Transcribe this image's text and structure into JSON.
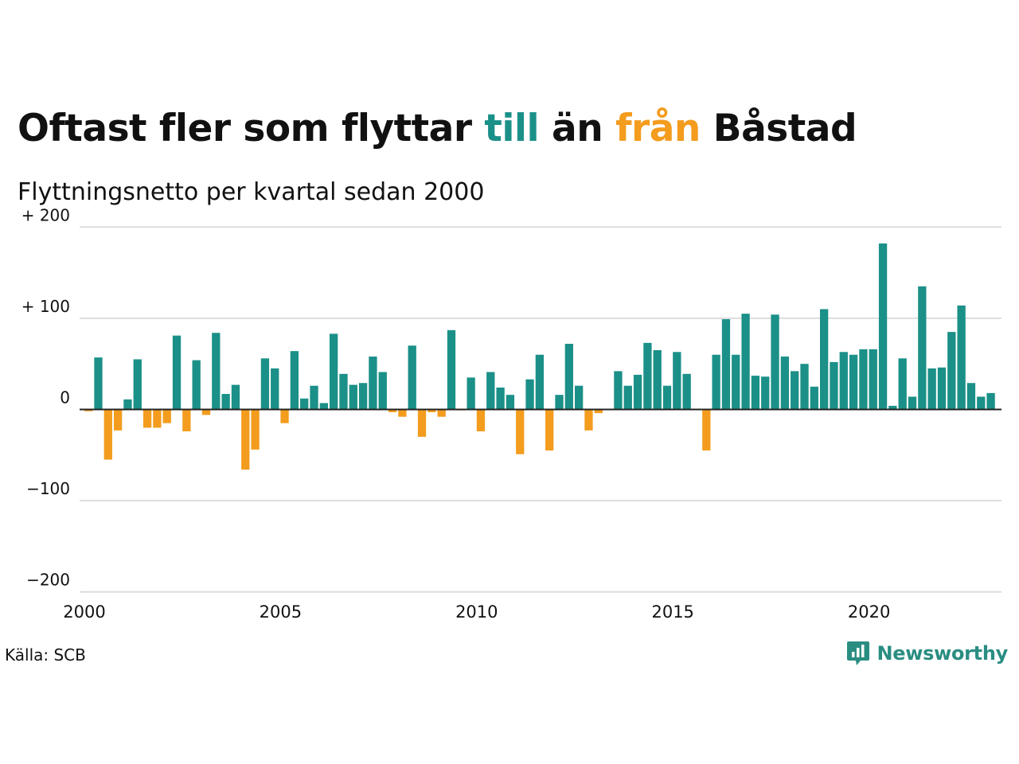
{
  "title": {
    "part1": "Oftast fler som flyttar ",
    "till": "till",
    "part2": " än ",
    "fran": "från",
    "part3": " Båstad"
  },
  "subtitle": "Flyttningsnetto per kvartal sedan 2000",
  "source": "Källa: SCB",
  "brand": {
    "name": "Newsworthy",
    "icon": "newsworthy-logo-icon"
  },
  "colors": {
    "positive": "#1b9088",
    "negative": "#f39c1e",
    "grid": "#dddddd",
    "axis": "#222222",
    "text": "#111111"
  },
  "chart_data": {
    "type": "bar",
    "x_start": "2000 Q1",
    "series": [
      {
        "values": [
          -2,
          57,
          -55,
          -23,
          11,
          55,
          -20,
          -20,
          -15,
          81,
          -24,
          54,
          -6,
          84,
          17,
          27,
          -66,
          -44,
          56,
          45,
          -15,
          64,
          12,
          26,
          7,
          83,
          39,
          27,
          29,
          58,
          41,
          -3,
          -8,
          70,
          -30,
          -3,
          -8,
          87,
          -1,
          35,
          -24,
          41,
          24,
          16,
          -49,
          33,
          60,
          -45,
          16,
          72,
          26,
          -23,
          -4,
          0,
          42,
          26,
          38,
          73,
          65,
          26,
          63,
          39,
          0,
          -45,
          60,
          99,
          60,
          105,
          37,
          36,
          104,
          58,
          42,
          50,
          25,
          110,
          52,
          63,
          60,
          66,
          66,
          182,
          4,
          56,
          14,
          135,
          45,
          46,
          85,
          114,
          29,
          14,
          18
        ]
      }
    ],
    "x_ticks": [
      "2000",
      "2005",
      "2010",
      "2015",
      "2020"
    ],
    "y_ticks": [
      "+ 200",
      "+ 100",
      "0",
      "−100",
      "−200"
    ],
    "ylim": [
      -200,
      200
    ],
    "grid": true,
    "legend": "none"
  }
}
